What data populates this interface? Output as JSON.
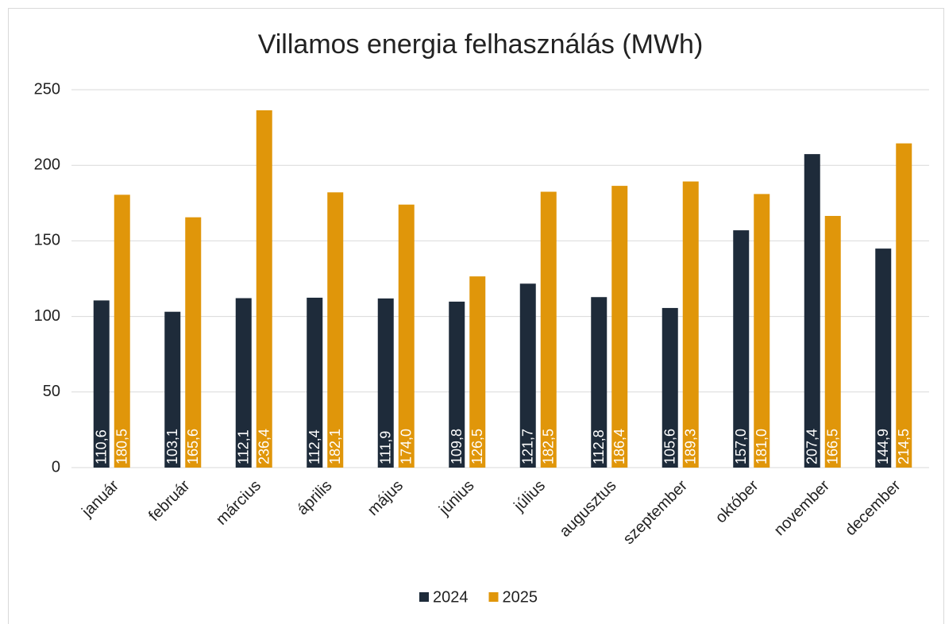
{
  "chart_data": {
    "type": "bar",
    "title": "Villamos energia felhasználás (MWh)",
    "categories": [
      "január",
      "február",
      "március",
      "április",
      "május",
      "június",
      "július",
      "augusztus",
      "szeptember",
      "október",
      "november",
      "december"
    ],
    "series": [
      {
        "name": "2024",
        "color": "#1e2b3a",
        "values": [
          110.6,
          103.1,
          112.1,
          112.4,
          111.9,
          109.8,
          121.7,
          112.8,
          105.6,
          157.0,
          207.4,
          144.9
        ],
        "value_labels": [
          "110,6",
          "103,1",
          "112,1",
          "112,4",
          "111,9",
          "109,8",
          "121,7",
          "112,8",
          "105,6",
          "157,0",
          "207,4",
          "144,9"
        ]
      },
      {
        "name": "2025",
        "color": "#e0960a",
        "values": [
          180.5,
          165.6,
          236.4,
          182.1,
          174.0,
          126.5,
          182.5,
          186.4,
          189.3,
          181.0,
          166.5,
          214.5
        ],
        "value_labels": [
          "180,5",
          "165,6",
          "236,4",
          "182,1",
          "174,0",
          "126,5",
          "182,5",
          "186,4",
          "189,3",
          "181,0",
          "166,5",
          "214,5"
        ]
      }
    ],
    "ylim": [
      0,
      250
    ],
    "yticks": [
      0,
      50,
      100,
      150,
      200,
      250
    ],
    "grid": true,
    "legend": "bottom"
  }
}
